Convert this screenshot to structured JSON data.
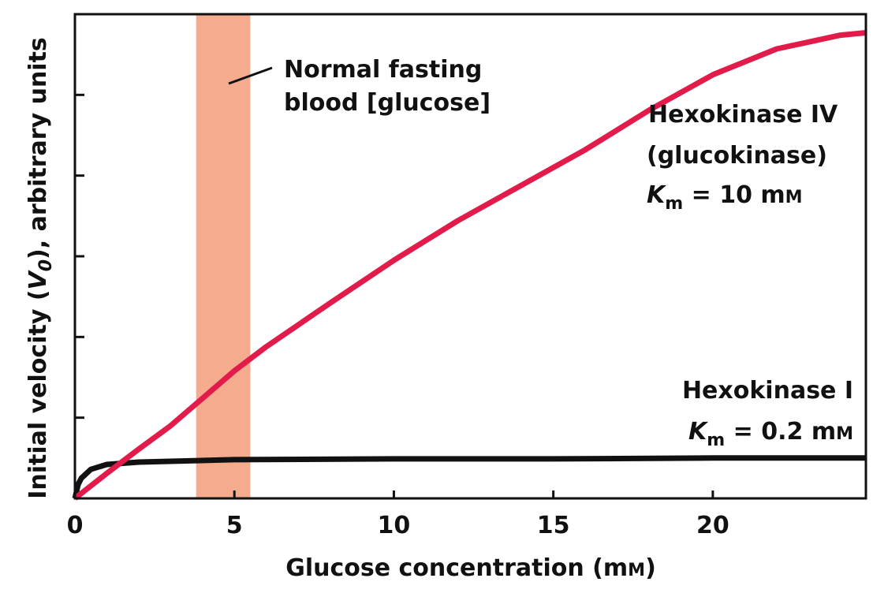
{
  "chart_data": {
    "type": "line",
    "y_label_parts": [
      "Initial velocity (",
      "V",
      "0",
      "), arbitrary units"
    ],
    "x_label_parts": [
      "Glucose concentration (m",
      "M",
      ")"
    ],
    "xlim": [
      0,
      24.8
    ],
    "ylim": [
      0,
      6
    ],
    "xticks": [
      0,
      5,
      10,
      15,
      20
    ],
    "yticks": [
      1,
      2,
      3,
      4,
      5
    ],
    "band": {
      "range": [
        3.8,
        5.5
      ],
      "color": "#f4ab8e",
      "label_lines": [
        "Normal fasting",
        "blood [glucose]"
      ]
    },
    "series": [
      {
        "name": "Hexokinase IV",
        "color": "#e31b4b",
        "note_lines": [
          "(glucokinase)"
        ],
        "km_parts": [
          "K",
          "m",
          " = 10 m",
          "M"
        ],
        "x": [
          0,
          1,
          2,
          3,
          4,
          5,
          6,
          8,
          10,
          12,
          14,
          16,
          18,
          20,
          22,
          24,
          24.8
        ],
        "values": [
          0,
          0.31,
          0.61,
          0.9,
          1.24,
          1.58,
          1.88,
          2.42,
          2.95,
          3.44,
          3.88,
          4.32,
          4.81,
          5.25,
          5.57,
          5.74,
          5.77
        ]
      },
      {
        "name": "Hexokinase I",
        "color": "#111111",
        "note_lines": [],
        "km_parts": [
          "K",
          "m",
          " = 0.2 m",
          "M"
        ],
        "x": [
          0,
          0.1,
          0.2,
          0.5,
          1,
          2,
          5,
          10,
          15,
          20,
          24.8
        ],
        "values": [
          0,
          0.17,
          0.25,
          0.36,
          0.42,
          0.45,
          0.48,
          0.49,
          0.49,
          0.5,
          0.5
        ]
      }
    ]
  }
}
